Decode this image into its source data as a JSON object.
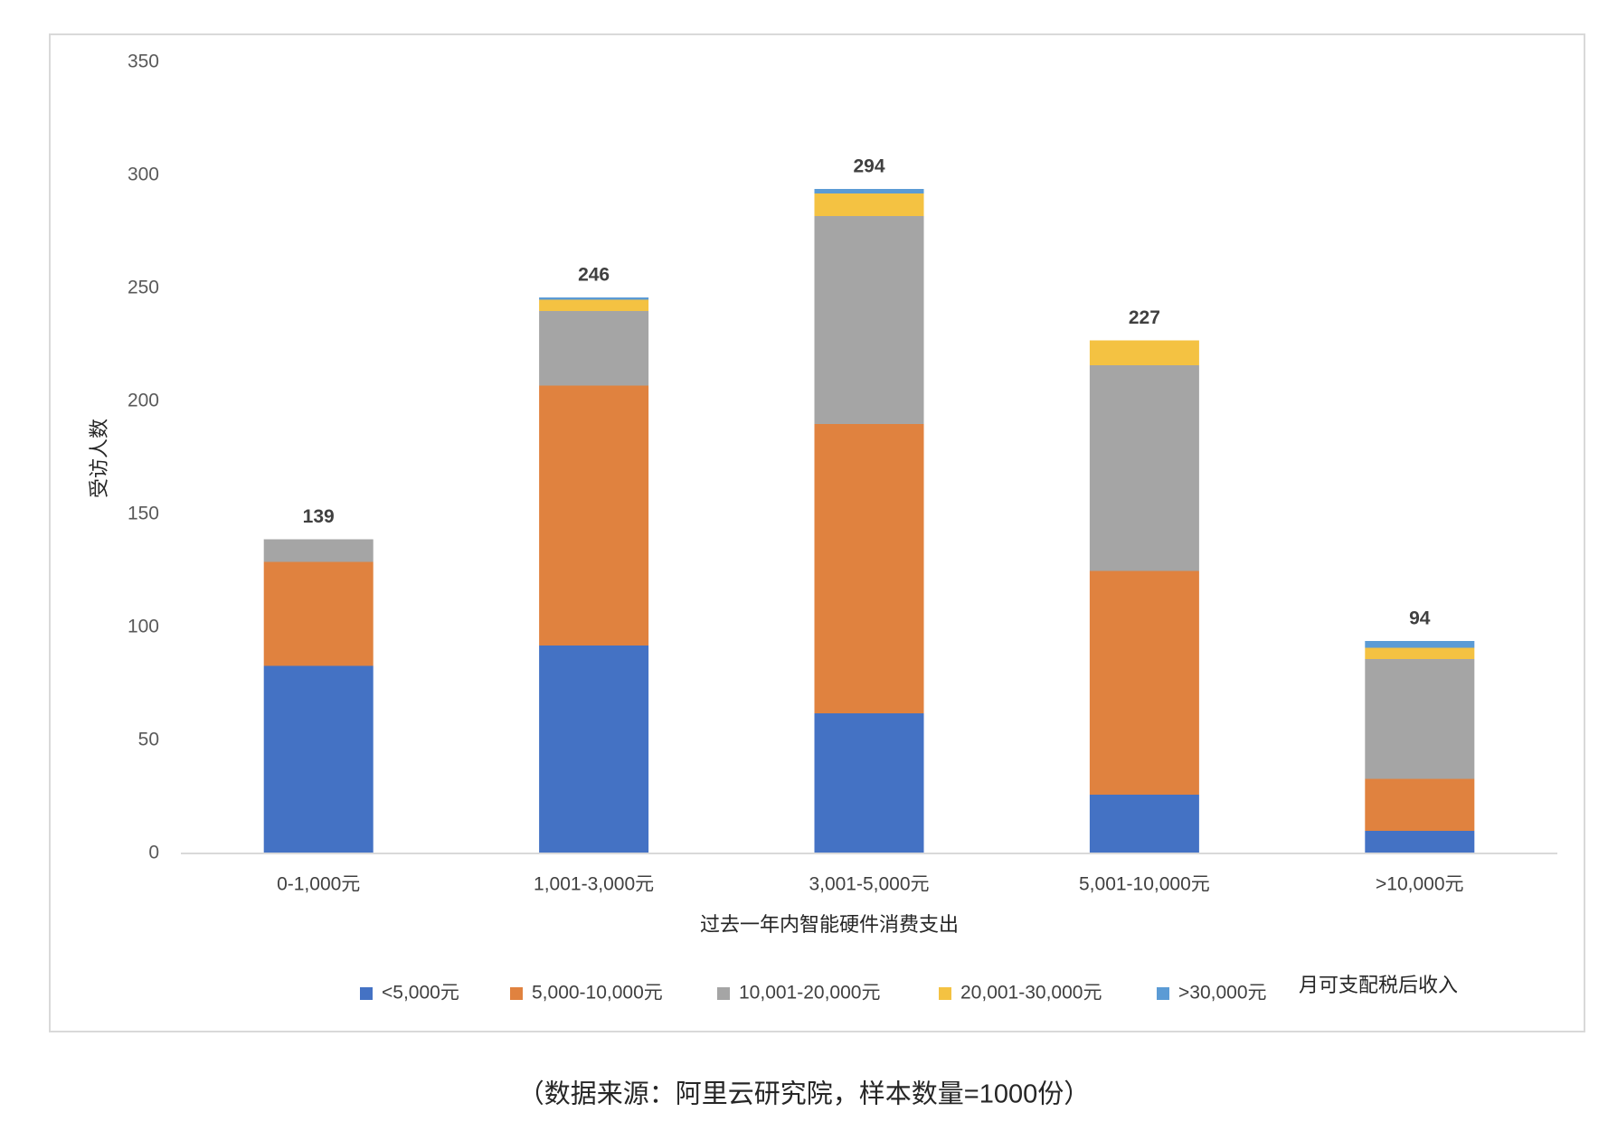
{
  "chart_data": {
    "type": "stacked_bar",
    "x_label": "过去一年内智能硬件消费支出",
    "y_label": "受访人数",
    "legend_title": "月可支配税后收入",
    "source": "（数据来源：阿里云研究院，样本数量=1000份）",
    "categories": [
      "0-1,000元",
      "1,001-3,000元",
      "3,001-5,000元",
      "5,001-10,000元",
      ">10,000元"
    ],
    "series": [
      {
        "name": "<5,000元",
        "color": "#4472c4",
        "values": [
          83,
          92,
          62,
          26,
          10
        ]
      },
      {
        "name": "5,000-10,000元",
        "color": "#e0823f",
        "values": [
          46,
          115,
          128,
          99,
          23
        ]
      },
      {
        "name": "10,001-20,000元",
        "color": "#a5a5a5",
        "values": [
          10,
          33,
          92,
          91,
          53
        ]
      },
      {
        "name": "20,001-30,000元",
        "color": "#f4c242",
        "values": [
          0,
          5,
          10,
          11,
          5
        ]
      },
      {
        "name": ">30,000元",
        "color": "#5b9bd5",
        "values": [
          0,
          1,
          2,
          0,
          3
        ]
      }
    ],
    "totals": [
      139,
      246,
      294,
      227,
      94
    ],
    "ylim": [
      0,
      350
    ],
    "yticks": [
      0,
      50,
      100,
      150,
      200,
      250,
      300,
      350
    ],
    "grid": false,
    "legend": "bottom"
  }
}
